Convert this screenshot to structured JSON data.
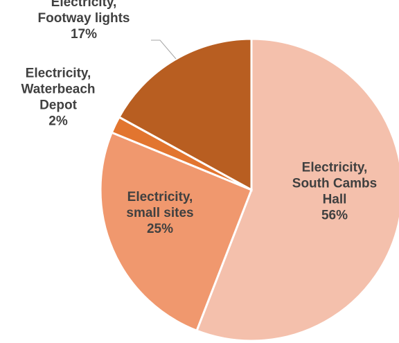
{
  "chart_data": {
    "type": "pie",
    "start_angle_deg": 0,
    "direction": "clockwise",
    "slices": [
      {
        "name_lines": [
          "Electricity,",
          "South Cambs",
          "Hall"
        ],
        "value": 55.9,
        "value_label": "56%",
        "color": "#f4c0ac"
      },
      {
        "name_lines": [
          "Electricity,",
          "small sites"
        ],
        "value": 25.3,
        "value_label": "25%",
        "color": "#f0986e"
      },
      {
        "name_lines": [
          "Electricity,",
          "Waterbeach",
          "Depot"
        ],
        "value": 1.8,
        "value_label": "2%",
        "color": "#e2752f"
      },
      {
        "name_lines": [
          "Electricity,",
          "Footway lights"
        ],
        "value": 17.0,
        "value_label": "17%",
        "color": "#b85e21"
      }
    ],
    "legend": "none"
  }
}
